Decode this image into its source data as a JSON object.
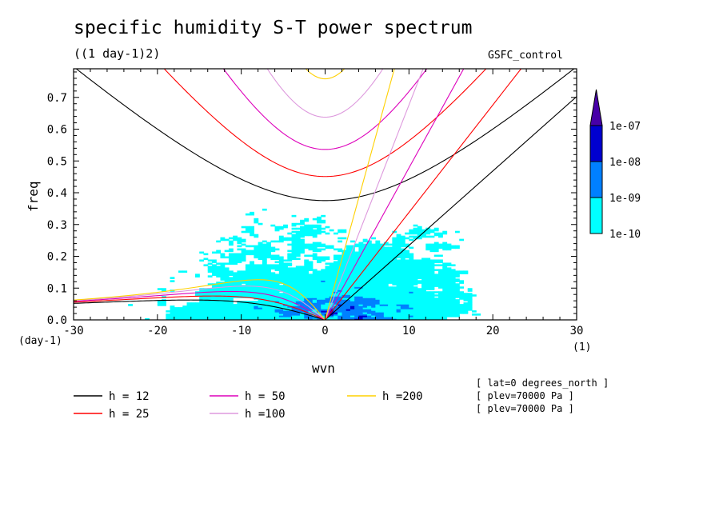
{
  "title": "specific humidity S-T power spectrum",
  "units_label": "((1 day-1)2)",
  "run_label": "GSFC_control",
  "info_lines": [
    "[ lat=0 degrees_north ]",
    "[ plev=70000 Pa ]",
    "[ plev=70000 Pa ]"
  ],
  "chart_data": {
    "type": "heatmap",
    "title": "specific humidity S-T power spectrum",
    "xlabel": "wvn",
    "ylabel": "freq",
    "x_unit_label": "(1)",
    "y_unit_label": "(day-1)",
    "xlim": [
      -30,
      30
    ],
    "ylim": [
      0,
      0.79
    ],
    "x_ticks": [
      "-30",
      "-20",
      "-10",
      "0",
      "10",
      "20",
      "30"
    ],
    "y_ticks": [
      "0.0",
      "0.1",
      "0.2",
      "0.3",
      "0.4",
      "0.5",
      "0.6",
      "0.7"
    ],
    "colorbar": {
      "levels": [
        "1e-10",
        "1e-09",
        "1e-08",
        "1e-07"
      ],
      "colors": [
        "#00ffff",
        "#0080ff",
        "#0000d0",
        "#4800a8"
      ]
    },
    "dispersion_curves": [
      {
        "name": "h = 12",
        "h": 12,
        "color": "#000000"
      },
      {
        "name": "h = 25",
        "h": 25,
        "color": "#ff0000"
      },
      {
        "name": "h = 50",
        "h": 50,
        "color": "#dd00bb"
      },
      {
        "name": "h =100",
        "h": 100,
        "color": "#dd99dd"
      },
      {
        "name": "h =200",
        "h": 200,
        "color": "#ffd000"
      }
    ]
  }
}
